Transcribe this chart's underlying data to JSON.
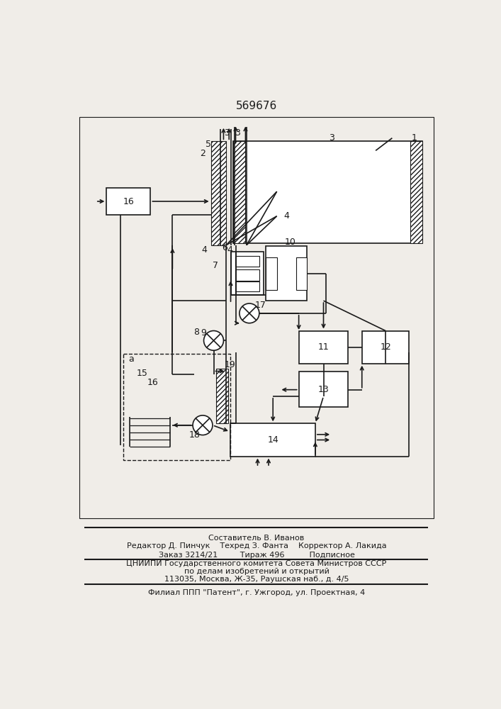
{
  "title": "569676",
  "footer_lines": [
    "Составитель В. Иванов",
    "Редактор Д. Пинчук    Техред З. Фанта    Корректор А. Лакида",
    "Заказ 3214/21         Тираж 496          Подписное",
    "ЦНИИПИ Государственного комитета Совета Министров СССР",
    "по делам изобретений и открытий",
    "113035, Москва, Ж-35, Раушская наб., д. 4/5",
    "Филиал ППП \"Патент\", г. Ужгород, ул. Проектная, 4"
  ],
  "bg_color": "#f0ede8",
  "line_color": "#1a1a1a"
}
